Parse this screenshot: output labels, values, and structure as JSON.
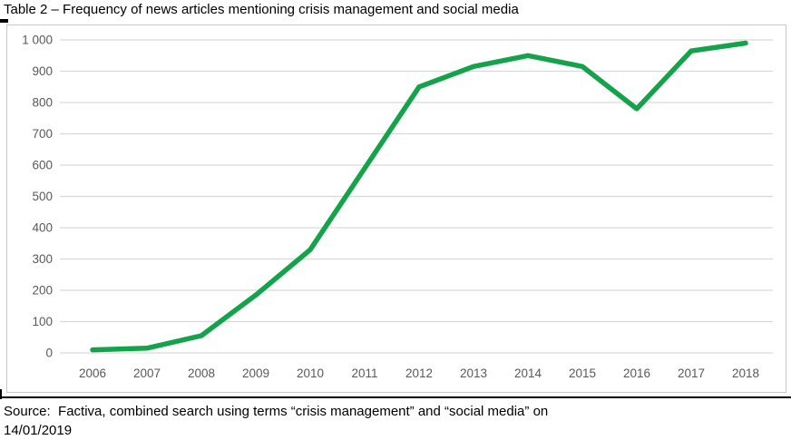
{
  "page": {
    "caption": "Table 2 – Frequency of news articles mentioning crisis management and social media",
    "source_line1": "Source:  Factiva, combined search using terms “crisis management” and “social media” on",
    "source_line2": "14/01/2019"
  },
  "chart_data": {
    "type": "line",
    "title": "Table 2 – Frequency of news articles mentioning crisis management and social media",
    "categories": [
      "2006",
      "2007",
      "2008",
      "2009",
      "2010",
      "2011",
      "2012",
      "2013",
      "2014",
      "2015",
      "2016",
      "2017",
      "2018"
    ],
    "series": [
      {
        "name": "News articles mentioning crisis management and social media",
        "values": [
          10,
          15,
          55,
          185,
          330,
          590,
          850,
          915,
          950,
          915,
          780,
          965,
          990
        ]
      }
    ],
    "xlabel": "",
    "ylabel": "",
    "ylim": [
      0,
      1000
    ],
    "ytick_step": 100,
    "ytick_labels": [
      "0",
      "100",
      "200",
      "300",
      "400",
      "500",
      "600",
      "700",
      "800",
      "900",
      "1 000"
    ],
    "grid": "horizontal",
    "legend": "none",
    "line_color": "#14a24b",
    "grid_color": "#d9d9d9",
    "axis_label_color": "#595959",
    "panel_border_color": "#c9c9c9"
  }
}
